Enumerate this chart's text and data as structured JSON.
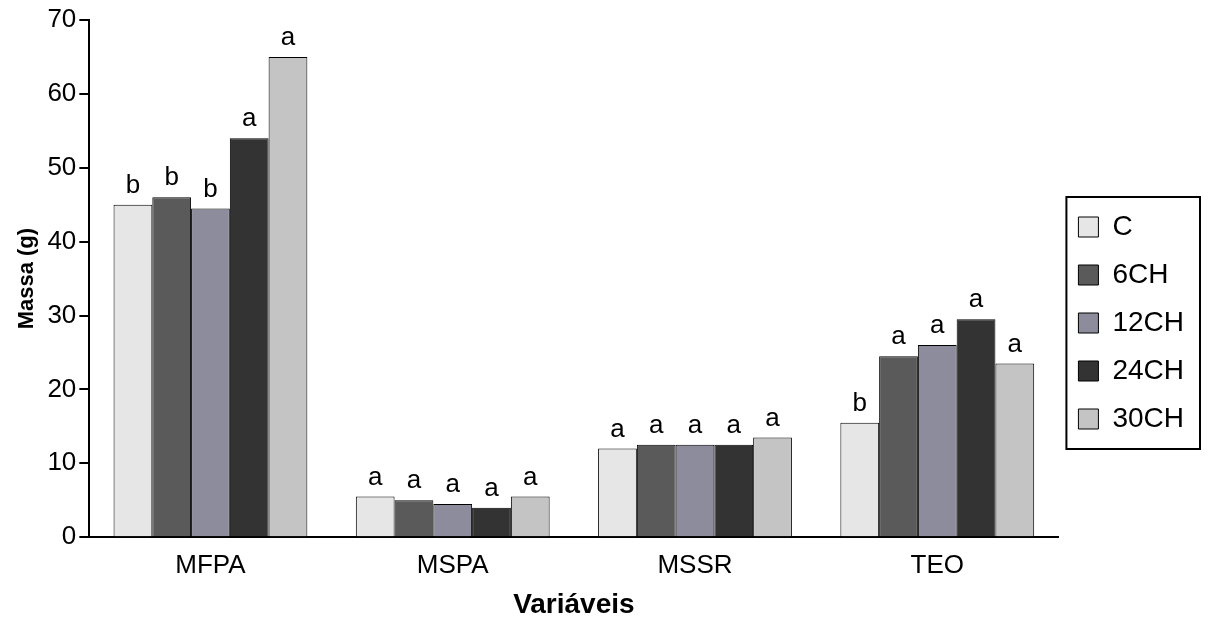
{
  "chart_data": {
    "type": "bar",
    "xlabel": "Variáveis",
    "ylabel": "Massa (g)",
    "categories": [
      "MFPA",
      "MSPA",
      "MSSR",
      "TEO"
    ],
    "series": [
      {
        "name": "C",
        "color": "#e6e6e6",
        "values": [
          45,
          5.5,
          12,
          15.5
        ],
        "value_labels": [
          "b",
          "a",
          "a",
          "b"
        ]
      },
      {
        "name": "6CH",
        "color": "#5a5a5a",
        "values": [
          46,
          5,
          12.5,
          24.5
        ],
        "value_labels": [
          "b",
          "a",
          "a",
          "a"
        ]
      },
      {
        "name": "12CH",
        "color": "#8c8c9c",
        "values": [
          44.5,
          4.5,
          12.5,
          26
        ],
        "value_labels": [
          "b",
          "a",
          "a",
          "a"
        ]
      },
      {
        "name": "24CH",
        "color": "#333333",
        "values": [
          54,
          4,
          12.5,
          29.5
        ],
        "value_labels": [
          "a",
          "a",
          "a",
          "a"
        ]
      },
      {
        "name": "30CH",
        "color": "#c4c4c4",
        "values": [
          65,
          5.5,
          13.5,
          23.5
        ],
        "value_labels": [
          "a",
          "a",
          "a",
          "a"
        ]
      }
    ],
    "ylim": [
      0,
      70
    ],
    "yticks": [
      0,
      10,
      20,
      30,
      40,
      50,
      60,
      70
    ],
    "grid": false,
    "legend": "right"
  }
}
